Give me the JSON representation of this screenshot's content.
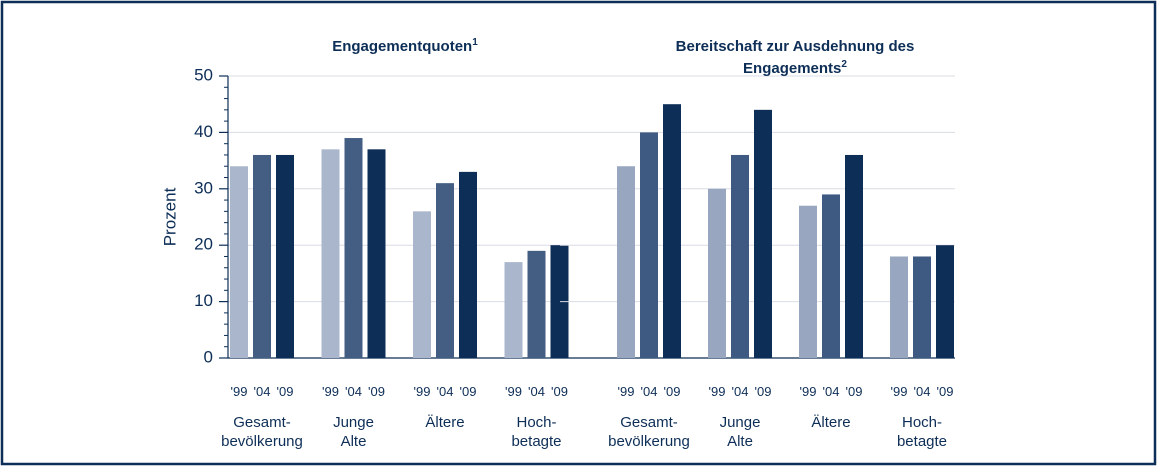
{
  "chart_data": [
    {
      "type": "bar",
      "title_lines": [
        "Engagementquoten"
      ],
      "title_note": "1",
      "y_label": "Prozent",
      "categories": [
        [
          "Gesamt-",
          "bevölkerung"
        ],
        [
          "Junge",
          "Alte"
        ],
        [
          "Ältere"
        ],
        [
          "Hoch-",
          "betagte"
        ]
      ],
      "series": [
        {
          "name": "'99",
          "color": "#a9b6cc",
          "values": [
            34,
            37,
            26,
            17
          ]
        },
        {
          "name": "'04",
          "color": "#435d83",
          "values": [
            36,
            39,
            31,
            19
          ]
        },
        {
          "name": "'09",
          "color": "#0d2e57",
          "values": [
            36,
            37,
            33,
            20
          ]
        }
      ],
      "ylim": [
        0,
        50
      ],
      "yticks": [
        0,
        10,
        20,
        30,
        40,
        50
      ],
      "grid": true
    },
    {
      "type": "bar",
      "title_lines": [
        "Bereitschaft zur Ausdehnung des",
        "Engagements"
      ],
      "title_note": "2",
      "categories": [
        [
          "Gesamt-",
          "bevölkerung"
        ],
        [
          "Junge",
          "Alte"
        ],
        [
          "Ältere"
        ],
        [
          "Hoch-",
          "betagte"
        ]
      ],
      "series": [
        {
          "name": "'99",
          "color": "#98a6c0",
          "values": [
            34,
            30,
            27,
            18
          ]
        },
        {
          "name": "'04",
          "color": "#3e5a82",
          "values": [
            40,
            36,
            29,
            18
          ]
        },
        {
          "name": "'09",
          "color": "#0d2e57",
          "values": [
            45,
            44,
            36,
            20
          ]
        }
      ],
      "ylim": [
        0,
        50
      ],
      "yticks": [
        0,
        10,
        20,
        30,
        40,
        50
      ],
      "grid": true
    }
  ]
}
